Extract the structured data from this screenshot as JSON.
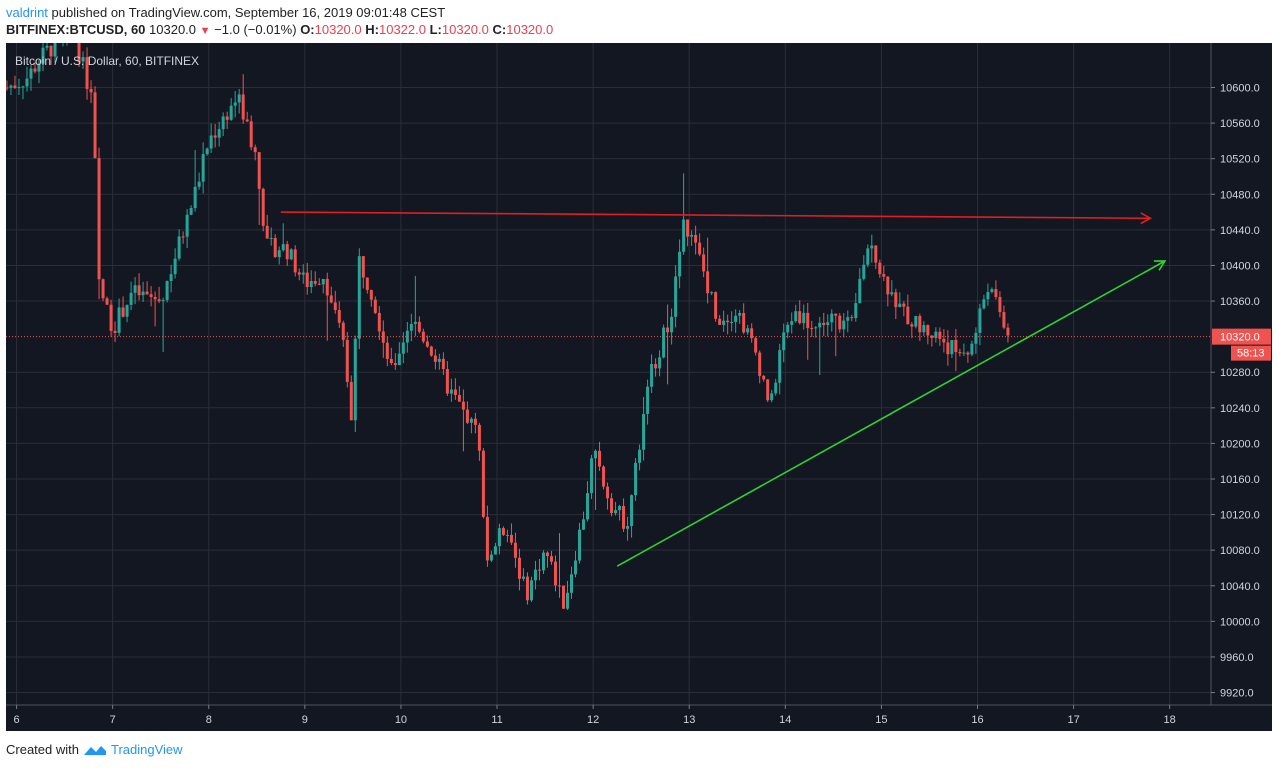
{
  "header": {
    "user": "valdrint",
    "published": "published on TradingView.com, September 16, 2019 09:01:48 CEST",
    "symbol": "BITFINEX:BTCUSD, 60",
    "price": "10320.0",
    "change": "−1.0 (−0.01%)",
    "o_label": "O:",
    "o_val": "10320.0",
    "h_label": "H:",
    "h_val": "10322.0",
    "l_label": "L:",
    "l_val": "10320.0",
    "c_label": "C:",
    "c_val": "10320.0"
  },
  "footer": {
    "created": "Created with",
    "brand": "TradingView"
  },
  "colors": {
    "bg": "#131722",
    "up": "#26a69a",
    "down": "#ef5350",
    "grid": "#2a2e39",
    "resistance": "#e01f1f",
    "support": "#2fd32f"
  },
  "chart_data": {
    "type": "candlestick",
    "title": "Bitcoin / U.S. Dollar, 60, BITFINEX",
    "x_tick_labels": [
      "6",
      "7",
      "8",
      "9",
      "10",
      "11",
      "12",
      "13",
      "14",
      "15",
      "16",
      "17",
      "18"
    ],
    "y_tick_labels": [
      "10600.0",
      "10560.0",
      "10520.0",
      "10480.0",
      "10440.0",
      "10400.0",
      "10360.0",
      "10280.0",
      "10240.0",
      "10200.0",
      "10160.0",
      "10120.0",
      "10080.0",
      "10040.0",
      "10000.0",
      "9960.0",
      "9920.0"
    ],
    "x_range": [
      5.89,
      18.43
    ],
    "y_range": [
      9906,
      10650
    ],
    "current_price": {
      "label": "10320.0",
      "value": 10320,
      "countdown": "58:13"
    },
    "day_closes": [
      [
        5.9,
        10600
      ],
      [
        6.1,
        10610
      ],
      [
        6.3,
        10640
      ],
      [
        6.6,
        10660
      ],
      [
        6.8,
        10580
      ],
      [
        6.85,
        10380
      ],
      [
        7.0,
        10330
      ],
      [
        7.2,
        10370
      ],
      [
        7.5,
        10360
      ],
      [
        7.8,
        10460
      ],
      [
        8.0,
        10540
      ],
      [
        8.3,
        10590
      ],
      [
        8.5,
        10520
      ],
      [
        8.6,
        10420
      ],
      [
        8.8,
        10420
      ],
      [
        9.0,
        10380
      ],
      [
        9.2,
        10390
      ],
      [
        9.4,
        10310
      ],
      [
        9.5,
        10220
      ],
      [
        9.55,
        10410
      ],
      [
        9.7,
        10370
      ],
      [
        9.9,
        10280
      ],
      [
        10.1,
        10340
      ],
      [
        10.3,
        10310
      ],
      [
        10.5,
        10260
      ],
      [
        10.8,
        10210
      ],
      [
        10.9,
        10070
      ],
      [
        11.1,
        10110
      ],
      [
        11.3,
        10030
      ],
      [
        11.5,
        10080
      ],
      [
        11.7,
        10020
      ],
      [
        11.9,
        10120
      ],
      [
        12.0,
        10190
      ],
      [
        12.2,
        10130
      ],
      [
        12.35,
        10110
      ],
      [
        12.5,
        10210
      ],
      [
        12.6,
        10280
      ],
      [
        12.8,
        10340
      ],
      [
        12.95,
        10450
      ],
      [
        13.1,
        10410
      ],
      [
        13.3,
        10340
      ],
      [
        13.5,
        10350
      ],
      [
        13.7,
        10300
      ],
      [
        13.85,
        10240
      ],
      [
        13.95,
        10310
      ],
      [
        14.1,
        10350
      ],
      [
        14.3,
        10330
      ],
      [
        14.5,
        10340
      ],
      [
        14.7,
        10330
      ],
      [
        14.8,
        10400
      ],
      [
        14.9,
        10430
      ],
      [
        15.0,
        10390
      ],
      [
        15.2,
        10350
      ],
      [
        15.4,
        10330
      ],
      [
        15.6,
        10320
      ],
      [
        15.8,
        10300
      ],
      [
        15.95,
        10310
      ],
      [
        16.1,
        10380
      ],
      [
        16.25,
        10340
      ],
      [
        16.35,
        10320
      ]
    ],
    "lines": [
      {
        "name": "",
        "color": "#e01f1f",
        "from": [
          8.75,
          10460
        ],
        "to": [
          17.8,
          10453
        ],
        "arrow": true
      },
      {
        "name": "",
        "color": "#2fd32f",
        "from": [
          12.25,
          10062
        ],
        "to": [
          17.95,
          10405
        ],
        "arrow": true
      }
    ]
  }
}
